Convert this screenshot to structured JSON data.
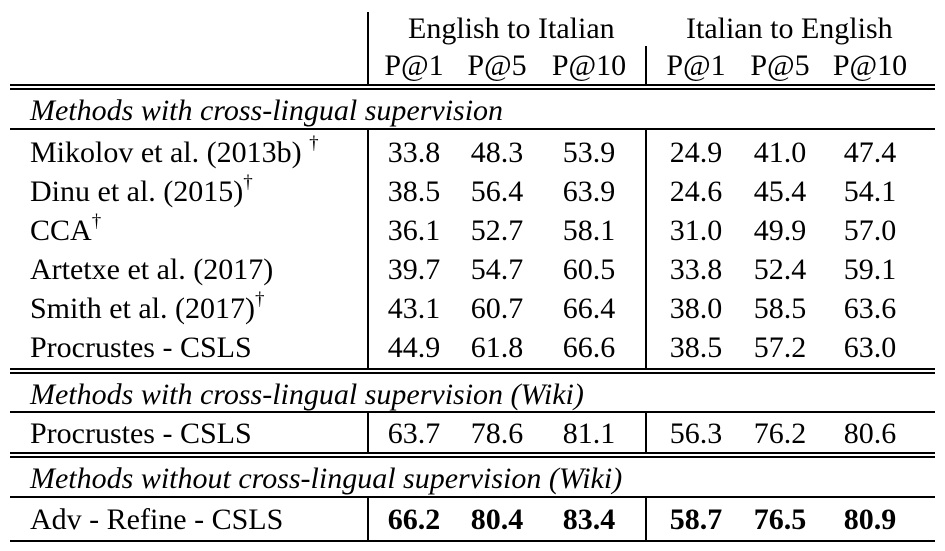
{
  "header": {
    "groups": [
      "English to Italian",
      "Italian to English"
    ],
    "metrics": [
      "P@1",
      "P@5",
      "P@10",
      "P@1",
      "P@5",
      "P@10"
    ]
  },
  "sections": [
    {
      "title": "Methods with cross-lingual supervision",
      "rows": [
        {
          "method": "Mikolov et al. (2013b)",
          "mark": "†",
          "values": [
            "33.8",
            "48.3",
            "53.9",
            "24.9",
            "41.0",
            "47.4"
          ]
        },
        {
          "method": "Dinu et al. (2015)",
          "mark": "†",
          "values": [
            "38.5",
            "56.4",
            "63.9",
            "24.6",
            "45.4",
            "54.1"
          ]
        },
        {
          "method": "CCA",
          "mark": "†",
          "values": [
            "36.1",
            "52.7",
            "58.1",
            "31.0",
            "49.9",
            "57.0"
          ]
        },
        {
          "method": "Artetxe et al. (2017)",
          "mark": "",
          "values": [
            "39.7",
            "54.7",
            "60.5",
            "33.8",
            "52.4",
            "59.1"
          ]
        },
        {
          "method": "Smith et al. (2017)",
          "mark": "†",
          "values": [
            "43.1",
            "60.7",
            "66.4",
            "38.0",
            "58.5",
            "63.6"
          ]
        },
        {
          "method": "Procrustes - CSLS",
          "mark": "",
          "values": [
            "44.9",
            "61.8",
            "66.6",
            "38.5",
            "57.2",
            "63.0"
          ]
        }
      ]
    },
    {
      "title": "Methods with cross-lingual supervision (Wiki)",
      "rows": [
        {
          "method": "Procrustes - CSLS",
          "mark": "",
          "values": [
            "63.7",
            "78.6",
            "81.1",
            "56.3",
            "76.2",
            "80.6"
          ]
        }
      ]
    },
    {
      "title": "Methods without cross-lingual supervision (Wiki)",
      "rows": [
        {
          "method": "Adv - Refine - CSLS",
          "mark": "",
          "values": [
            "66.2",
            "80.4",
            "83.4",
            "58.7",
            "76.5",
            "80.9"
          ],
          "bold": true
        }
      ]
    }
  ]
}
